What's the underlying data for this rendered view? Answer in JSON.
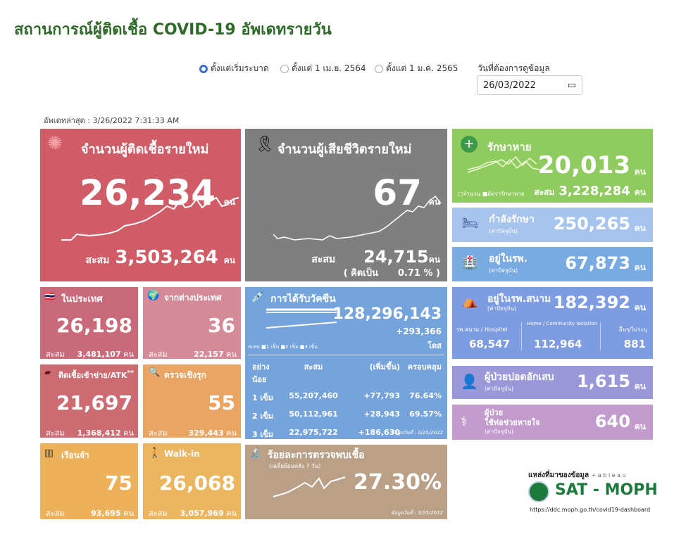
{
  "title": "สถานการณ์ผู้ติดเชื้อ COVID-19 อัพเดทรายวัน",
  "filters": {
    "options": [
      "ตั้งแต่เริ่มระบาด",
      "ตั้งแต่ 1 เม.ย. 2564",
      "ตั้งแต่ 1 ม.ค. 2565"
    ],
    "selected": "ตั้งแต่เริ่มระบาด",
    "date_label": "วันที่ต้องการดูข้อมูล",
    "date_value": "26/03/2022"
  },
  "updated": "อัพเดทล่าสุด : 3/26/2022 7:31:33 AM",
  "unit": "คน",
  "cum": "สะสม",
  "new_cases": {
    "label": "จำนวนผู้ติดเชื้อรายใหม่",
    "value": "26,234",
    "cumulative": "3,503,264",
    "color": "#cf5c66"
  },
  "deaths": {
    "label": "จำนวนผู้เสียชีวิตรายใหม่",
    "value": "67",
    "cumulative": "24,715",
    "pct_label": "( คิดเป็น",
    "pct": "0.71 % )",
    "color": "#7f7f7f"
  },
  "recovered": {
    "label": "รักษาหาย",
    "value": "20,013",
    "cumulative": "3,228,284",
    "legend": [
      "จำนวน",
      "อัตรารักษาหาย"
    ],
    "color": "#8fcb5f"
  },
  "treating": {
    "label": "กำลังรักษา",
    "sub": "(ค่าปัจจุบัน)",
    "value": "250,265"
  },
  "hospital": {
    "label": "อยู่ในรพ.",
    "sub": "(ค่าปัจจุบัน)",
    "value": "67,873"
  },
  "field": {
    "label": "อยู่ในรพ.สนาม",
    "sub": "(ค่าปัจจุบัน)",
    "value": "182,392",
    "cols": [
      {
        "label": "รพ.สนาม / Hospitel",
        "value": "68,547"
      },
      {
        "label": "Home / Community Isolation",
        "value": "112,964"
      },
      {
        "label": "อื่นๆ/ไม่ระบุ",
        "value": "881"
      }
    ]
  },
  "pneumonia": {
    "label": "ผู้ป่วยปอดอักเสบ",
    "sub": "(ค่าปัจจุบัน)",
    "value": "1,615"
  },
  "ventilator": {
    "label1": "ผู้ป่วย",
    "label2": "ใช้ท่อช่วยหายใจ",
    "sub": "(ค่าปัจจุบัน)",
    "value": "640"
  },
  "domestic": {
    "label": "ในประเทศ",
    "value": "26,198",
    "cumulative": "3,481,107"
  },
  "abroad": {
    "label": "จากต่างประเทศ",
    "value": "36",
    "cumulative": "22,157"
  },
  "atk": {
    "label": "ติดเชื้อเข้าข่าย/ATK",
    "mark": "**",
    "value": "21,697",
    "cumulative": "1,368,412"
  },
  "active": {
    "label": "ตรวจเชิงรุก",
    "value": "55",
    "cumulative": "329,443"
  },
  "prison": {
    "label": "เรือนจำ",
    "value": "75",
    "cumulative": "93,695"
  },
  "walkin": {
    "label": "Walk-in",
    "value": "26,068",
    "cumulative": "3,057,969"
  },
  "vaccine": {
    "label": "การได้รับวัคซีน",
    "total": "128,296,143",
    "increase": "+293,366",
    "unit": "โดส",
    "legend": [
      "สะสม",
      "1 เข็ม",
      "2 เข็ม",
      "3 เข็ม"
    ],
    "headers": [
      "อย่างน้อย",
      "สะสม",
      "(เพิ่มขึ้น)",
      "ครอบคลุม"
    ],
    "rows": [
      [
        "1 เข็ม",
        "55,207,460",
        "+77,793",
        "76.64%"
      ],
      [
        "2 เข็ม",
        "50,112,961",
        "+28,943",
        "69.57%"
      ],
      [
        "3 เข็ม",
        "22,975,722",
        "+186,630",
        ""
      ]
    ],
    "date": "ข้อมูลวันที่ : 3/25/2022"
  },
  "positivity": {
    "label": "ร้อยละการตรวจพบเชื้อ",
    "sub": "(เฉลี่ยย้อนหลัง 7 วัน)",
    "value": "27.30%",
    "date": "ข้อมูลวันที่ : 3/25/2022"
  },
  "source": {
    "label": "แหล่งที่มาของข้อมูล",
    "tableau": "+ a b l e a u",
    "brand": "SAT - MOPH",
    "url": "https://ddc.moph.go.th/covid19-dashboard"
  }
}
